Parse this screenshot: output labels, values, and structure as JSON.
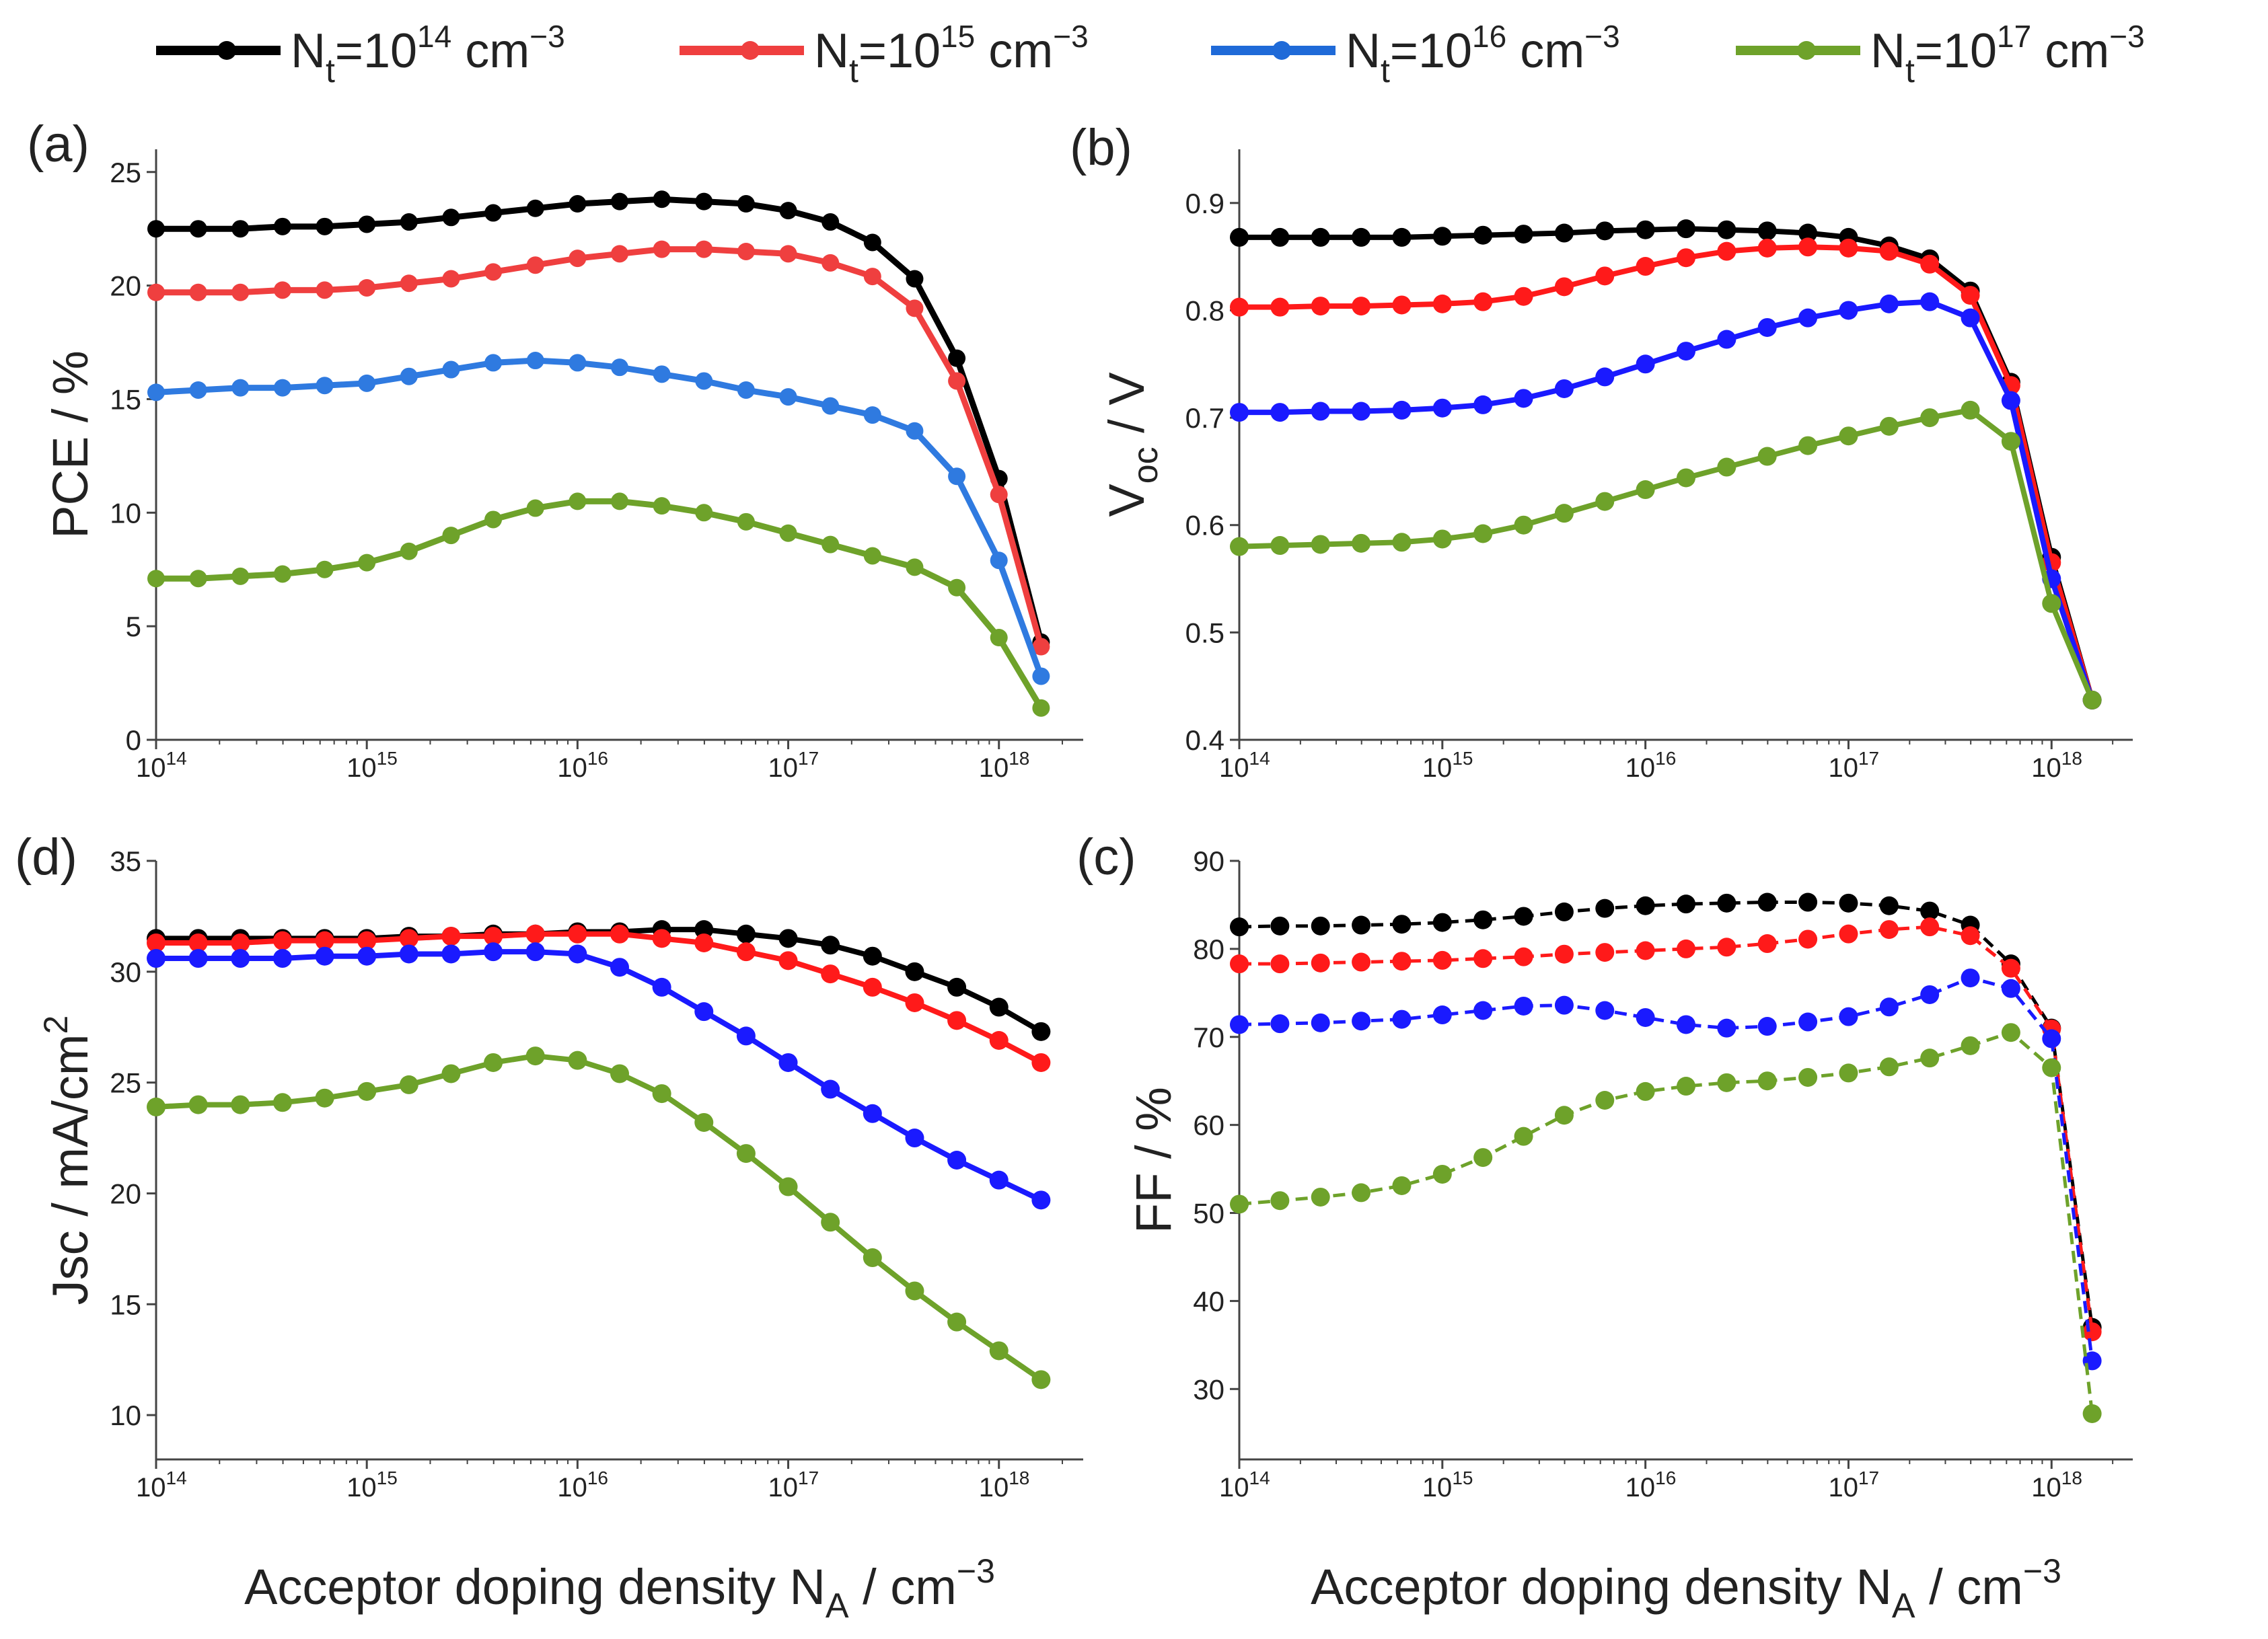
{
  "legend": {
    "items": [
      {
        "base": "N",
        "sub": "t",
        "mid": "=10",
        "sup": "14",
        "unit": " cm",
        "unit_sup": "−3",
        "color": "#000000"
      },
      {
        "base": "N",
        "sub": "t",
        "mid": "=10",
        "sup": "15",
        "unit": " cm",
        "unit_sup": "−3",
        "color": "#ef3f3f"
      },
      {
        "base": "N",
        "sub": "t",
        "mid": "=10",
        "sup": "16",
        "unit": " cm",
        "unit_sup": "−3",
        "color": "#1f6ad8"
      },
      {
        "base": "N",
        "sub": "t",
        "mid": "=10",
        "sup": "17",
        "unit": " cm",
        "unit_sup": "−3",
        "color": "#6ea22a"
      }
    ]
  },
  "x_tick_labels": [
    {
      "base": "10",
      "sup": "14"
    },
    {
      "base": "10",
      "sup": "15"
    },
    {
      "base": "10",
      "sup": "16"
    },
    {
      "base": "10",
      "sup": "17"
    },
    {
      "base": "10",
      "sup": "18"
    }
  ],
  "xlabel": {
    "text": "Acceptor doping density N",
    "sub": "A",
    "unit": " / cm",
    "unit_sup": "−3"
  },
  "chart_data": [
    {
      "id": "a",
      "panel_label": "(a)",
      "type": "line",
      "ylabel": {
        "text": "PCE / %"
      },
      "xscale": "log",
      "xlim_exp": [
        14,
        18.4
      ],
      "ylim": [
        0,
        26
      ],
      "yticks": [
        0,
        5,
        10,
        15,
        20,
        25
      ],
      "series_colors": [
        "#000000",
        "#ef3f3f",
        "#2f7ae0",
        "#6ea22a"
      ],
      "line_style": "solid",
      "x_exp": [
        14.0,
        14.2,
        14.4,
        14.6,
        14.8,
        15.0,
        15.2,
        15.4,
        15.6,
        15.8,
        16.0,
        16.2,
        16.4,
        16.6,
        16.8,
        17.0,
        17.2,
        17.4,
        17.6,
        17.8,
        18.0,
        18.2
      ],
      "series": [
        {
          "values": [
            22.5,
            22.5,
            22.5,
            22.6,
            22.6,
            22.7,
            22.8,
            23.0,
            23.2,
            23.4,
            23.6,
            23.7,
            23.8,
            23.7,
            23.6,
            23.3,
            22.8,
            21.9,
            20.3,
            16.8,
            11.5,
            4.3
          ]
        },
        {
          "values": [
            19.7,
            19.7,
            19.7,
            19.8,
            19.8,
            19.9,
            20.1,
            20.3,
            20.6,
            20.9,
            21.2,
            21.4,
            21.6,
            21.6,
            21.5,
            21.4,
            21.0,
            20.4,
            19.0,
            15.8,
            10.8,
            4.1
          ]
        },
        {
          "values": [
            15.3,
            15.4,
            15.5,
            15.5,
            15.6,
            15.7,
            16.0,
            16.3,
            16.6,
            16.7,
            16.6,
            16.4,
            16.1,
            15.8,
            15.4,
            15.1,
            14.7,
            14.3,
            13.6,
            11.6,
            7.9,
            2.8
          ]
        },
        {
          "values": [
            7.1,
            7.1,
            7.2,
            7.3,
            7.5,
            7.8,
            8.3,
            9.0,
            9.7,
            10.2,
            10.5,
            10.5,
            10.3,
            10.0,
            9.6,
            9.1,
            8.6,
            8.1,
            7.6,
            6.7,
            4.5,
            1.4
          ]
        }
      ]
    },
    {
      "id": "b",
      "panel_label": "(b)",
      "type": "line",
      "ylabel": {
        "text": "V",
        "sub": "oc",
        "unit": " / V"
      },
      "xscale": "log",
      "xlim_exp": [
        14,
        18.4
      ],
      "ylim": [
        0.4,
        0.95
      ],
      "yticks": [
        0.4,
        0.5,
        0.6,
        0.7,
        0.8,
        0.9
      ],
      "series_colors": [
        "#000000",
        "#ff1a1a",
        "#1a1aff",
        "#6ea22a"
      ],
      "line_style": "solid",
      "x_exp": [
        14.0,
        14.2,
        14.4,
        14.6,
        14.8,
        15.0,
        15.2,
        15.4,
        15.6,
        15.8,
        16.0,
        16.2,
        16.4,
        16.6,
        16.8,
        17.0,
        17.2,
        17.4,
        17.6,
        17.8,
        18.0,
        18.2
      ],
      "series": [
        {
          "values": [
            0.868,
            0.868,
            0.868,
            0.868,
            0.868,
            0.869,
            0.87,
            0.871,
            0.872,
            0.874,
            0.875,
            0.876,
            0.875,
            0.874,
            0.872,
            0.868,
            0.86,
            0.848,
            0.818,
            0.733,
            0.57,
            0.437
          ]
        },
        {
          "values": [
            0.803,
            0.803,
            0.804,
            0.804,
            0.805,
            0.806,
            0.808,
            0.813,
            0.822,
            0.832,
            0.841,
            0.849,
            0.855,
            0.858,
            0.859,
            0.858,
            0.855,
            0.843,
            0.814,
            0.73,
            0.565,
            0.437
          ]
        },
        {
          "values": [
            0.705,
            0.705,
            0.706,
            0.706,
            0.707,
            0.709,
            0.712,
            0.718,
            0.727,
            0.738,
            0.75,
            0.762,
            0.773,
            0.784,
            0.793,
            0.8,
            0.806,
            0.808,
            0.793,
            0.716,
            0.55,
            0.437
          ]
        },
        {
          "values": [
            0.58,
            0.581,
            0.582,
            0.583,
            0.584,
            0.587,
            0.592,
            0.6,
            0.611,
            0.622,
            0.633,
            0.644,
            0.654,
            0.664,
            0.674,
            0.683,
            0.692,
            0.7,
            0.707,
            0.678,
            0.527,
            0.437
          ]
        }
      ]
    },
    {
      "id": "d",
      "panel_label": "(d)",
      "type": "line",
      "ylabel": {
        "text": "Jsc / mA/cm",
        "sup": "2"
      },
      "xscale": "log",
      "xlim_exp": [
        14,
        18.4
      ],
      "ylim": [
        8,
        35
      ],
      "yticks": [
        10,
        15,
        20,
        25,
        30,
        35
      ],
      "series_colors": [
        "#000000",
        "#ff1a1a",
        "#1a1aff",
        "#6ea22a"
      ],
      "line_style": "solid",
      "x_exp": [
        14.0,
        14.2,
        14.4,
        14.6,
        14.8,
        15.0,
        15.2,
        15.4,
        15.6,
        15.8,
        16.0,
        16.2,
        16.4,
        16.6,
        16.8,
        17.0,
        17.2,
        17.4,
        17.6,
        17.8,
        18.0,
        18.2
      ],
      "series": [
        {
          "values": [
            31.5,
            31.5,
            31.5,
            31.5,
            31.5,
            31.5,
            31.6,
            31.6,
            31.7,
            31.7,
            31.8,
            31.8,
            31.9,
            31.9,
            31.7,
            31.5,
            31.2,
            30.7,
            30.0,
            29.3,
            28.4,
            27.3
          ]
        },
        {
          "values": [
            31.3,
            31.3,
            31.3,
            31.4,
            31.4,
            31.4,
            31.5,
            31.6,
            31.6,
            31.7,
            31.7,
            31.7,
            31.5,
            31.3,
            30.9,
            30.5,
            29.9,
            29.3,
            28.6,
            27.8,
            26.9,
            25.9
          ]
        },
        {
          "values": [
            30.6,
            30.6,
            30.6,
            30.6,
            30.7,
            30.7,
            30.8,
            30.8,
            30.9,
            30.9,
            30.8,
            30.2,
            29.3,
            28.2,
            27.1,
            25.9,
            24.7,
            23.6,
            22.5,
            21.5,
            20.6,
            19.7
          ]
        },
        {
          "values": [
            23.9,
            24.0,
            24.0,
            24.1,
            24.3,
            24.6,
            24.9,
            25.4,
            25.9,
            26.2,
            26.0,
            25.4,
            24.5,
            23.2,
            21.8,
            20.3,
            18.7,
            17.1,
            15.6,
            14.2,
            12.9,
            11.6
          ]
        }
      ]
    },
    {
      "id": "c",
      "panel_label": "(c)",
      "type": "line",
      "ylabel": {
        "text": "FF / %"
      },
      "xscale": "log",
      "xlim_exp": [
        14,
        18.4
      ],
      "ylim": [
        22,
        90
      ],
      "yticks": [
        30,
        40,
        50,
        60,
        70,
        80,
        90
      ],
      "series_colors": [
        "#000000",
        "#ff1a1a",
        "#1a1aff",
        "#6ea22a"
      ],
      "line_style": "dashed",
      "x_exp": [
        14.0,
        14.2,
        14.4,
        14.6,
        14.8,
        15.0,
        15.2,
        15.4,
        15.6,
        15.8,
        16.0,
        16.2,
        16.4,
        16.6,
        16.8,
        17.0,
        17.2,
        17.4,
        17.6,
        17.8,
        18.0,
        18.2
      ],
      "series": [
        {
          "values": [
            82.5,
            82.6,
            82.6,
            82.7,
            82.8,
            83.0,
            83.3,
            83.7,
            84.2,
            84.6,
            84.9,
            85.1,
            85.2,
            85.3,
            85.3,
            85.2,
            84.9,
            84.3,
            82.7,
            78.3,
            71.0,
            37.0
          ]
        },
        {
          "values": [
            78.3,
            78.3,
            78.4,
            78.5,
            78.6,
            78.7,
            78.9,
            79.1,
            79.4,
            79.6,
            79.8,
            80.0,
            80.2,
            80.6,
            81.1,
            81.7,
            82.2,
            82.5,
            81.5,
            77.8,
            70.9,
            36.5
          ]
        },
        {
          "values": [
            71.4,
            71.5,
            71.6,
            71.8,
            72.0,
            72.5,
            73.0,
            73.5,
            73.6,
            73.0,
            72.2,
            71.4,
            71.0,
            71.2,
            71.7,
            72.3,
            73.4,
            74.8,
            76.7,
            75.5,
            69.8,
            33.2
          ]
        },
        {
          "values": [
            51.0,
            51.4,
            51.8,
            52.3,
            53.1,
            54.4,
            56.3,
            58.7,
            61.1,
            62.8,
            63.8,
            64.4,
            64.8,
            65.0,
            65.4,
            65.9,
            66.6,
            67.6,
            69.0,
            70.5,
            66.5,
            27.2
          ]
        }
      ]
    }
  ]
}
